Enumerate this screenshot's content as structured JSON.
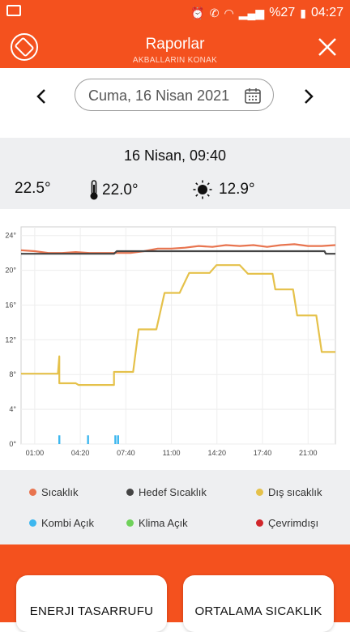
{
  "status_bar": {
    "battery": "%27",
    "time": "04:27"
  },
  "header": {
    "title": "Raporlar",
    "subtitle": "AKBALLARIN KONAK"
  },
  "date": {
    "label": "Cuma, 16 Nisan 2021"
  },
  "summary": {
    "time": "16 Nisan, 09:40",
    "indoor_temp": "22.5°",
    "target_temp": "22.0°",
    "outdoor_temp": "12.9°"
  },
  "chart_data": {
    "type": "line",
    "x_ticks": [
      "01:00",
      "04:20",
      "07:40",
      "11:00",
      "14:20",
      "17:40",
      "21:00"
    ],
    "y_ticks": [
      "0°",
      "4°",
      "8°",
      "12°",
      "16°",
      "20°",
      "24°"
    ],
    "ylim": [
      0,
      25
    ],
    "x_range_hours": [
      0,
      23
    ],
    "grid": true,
    "series": [
      {
        "name": "Sıcaklık",
        "color": "#e8744f",
        "points": [
          [
            0,
            22.3
          ],
          [
            1,
            22.2
          ],
          [
            2,
            22.0
          ],
          [
            3,
            22.0
          ],
          [
            4,
            22.1
          ],
          [
            5,
            22.0
          ],
          [
            6,
            22.0
          ],
          [
            7,
            22.0
          ],
          [
            8,
            22.0
          ],
          [
            9,
            22.2
          ],
          [
            10,
            22.5
          ],
          [
            11,
            22.5
          ],
          [
            12,
            22.6
          ],
          [
            13,
            22.8
          ],
          [
            14,
            22.7
          ],
          [
            15,
            22.9
          ],
          [
            16,
            22.8
          ],
          [
            17,
            22.9
          ],
          [
            18,
            22.7
          ],
          [
            19,
            22.9
          ],
          [
            20,
            23.0
          ],
          [
            21,
            22.8
          ],
          [
            22,
            22.8
          ],
          [
            23,
            22.9
          ]
        ]
      },
      {
        "name": "Hedef Sıcaklık",
        "color": "#444444",
        "points": [
          [
            0,
            21.9
          ],
          [
            6.8,
            21.9
          ],
          [
            7,
            22.2
          ],
          [
            22.2,
            22.2
          ],
          [
            22.3,
            21.9
          ],
          [
            23,
            21.9
          ]
        ]
      },
      {
        "name": "Dış sıcaklık",
        "color": "#e5c14a",
        "points": [
          [
            0,
            8.1
          ],
          [
            2.7,
            8.1
          ],
          [
            2.8,
            10.1
          ],
          [
            2.8,
            7.0
          ],
          [
            4,
            7.0
          ],
          [
            4.2,
            6.8
          ],
          [
            6.8,
            6.8
          ],
          [
            6.8,
            8.3
          ],
          [
            8.2,
            8.3
          ],
          [
            8.6,
            13.2
          ],
          [
            9.9,
            13.2
          ],
          [
            10.5,
            17.4
          ],
          [
            11.6,
            17.4
          ],
          [
            12.3,
            19.7
          ],
          [
            13.8,
            19.7
          ],
          [
            14.3,
            20.6
          ],
          [
            16,
            20.6
          ],
          [
            16.6,
            19.6
          ],
          [
            18.4,
            19.6
          ],
          [
            18.6,
            17.8
          ],
          [
            19.9,
            17.8
          ],
          [
            20.2,
            14.8
          ],
          [
            21.6,
            14.8
          ],
          [
            22.0,
            10.6
          ],
          [
            23,
            10.6
          ]
        ]
      },
      {
        "name": "Kombi Açık",
        "color": "#3db7ef",
        "spikes": [
          [
            2.8,
            1.0
          ],
          [
            4.9,
            1.0
          ],
          [
            6.9,
            1.0
          ],
          [
            7.1,
            1.0
          ]
        ]
      }
    ]
  },
  "legend": [
    {
      "label": "Sıcaklık",
      "color": "#e8744f"
    },
    {
      "label": "Hedef Sıcaklık",
      "color": "#444444"
    },
    {
      "label": "Dış sıcaklık",
      "color": "#e5c14a"
    },
    {
      "label": "Kombi Açık",
      "color": "#3db7ef"
    },
    {
      "label": "Klima Açık",
      "color": "#6fd15a"
    },
    {
      "label": "Çevrimdışı",
      "color": "#d1262b"
    }
  ],
  "cards": {
    "energy": "ENERJI TASARRUFU",
    "average": "ORTALAMA SICAKLIK"
  }
}
